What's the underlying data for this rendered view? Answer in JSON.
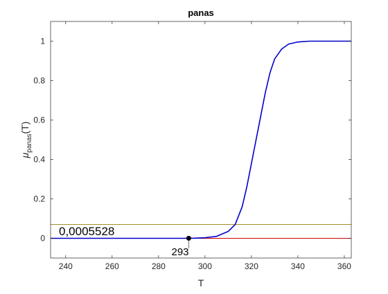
{
  "chart_data": {
    "type": "line",
    "title": "panas",
    "xlabel": "T",
    "ylabel": {
      "symbol": "μ",
      "subscript": "panas",
      "suffix": "(T)"
    },
    "xlim": [
      233.5,
      363
    ],
    "ylim": [
      -0.1,
      1.1
    ],
    "xticks": [
      240,
      260,
      280,
      300,
      320,
      340,
      360
    ],
    "yticks": [
      0,
      0.2,
      0.4,
      0.6,
      0.8,
      1
    ],
    "grid": false,
    "series": [
      {
        "kind": "sigmoid membership curve",
        "color": "#0000cc",
        "points": [
          [
            233.5,
            0
          ],
          [
            290,
            0
          ],
          [
            295,
            0.0008
          ],
          [
            300,
            0.003
          ],
          [
            305,
            0.01
          ],
          [
            310,
            0.035
          ],
          [
            313,
            0.07
          ],
          [
            316,
            0.16
          ],
          [
            318,
            0.26
          ],
          [
            320,
            0.38
          ],
          [
            322,
            0.5
          ],
          [
            324,
            0.62
          ],
          [
            326,
            0.74
          ],
          [
            328,
            0.84
          ],
          [
            330,
            0.91
          ],
          [
            333,
            0.96
          ],
          [
            336,
            0.985
          ],
          [
            340,
            0.996
          ],
          [
            345,
            1
          ],
          [
            363,
            1
          ]
        ]
      },
      {
        "kind": "horizontal line",
        "color": "#a08c2a",
        "y": 0.07
      },
      {
        "kind": "horizontal line",
        "color": "#cc0000",
        "y": 0
      }
    ],
    "marker": {
      "x": 293,
      "y": 0.0005528,
      "color": "#000000"
    },
    "annotations": {
      "value_label": "0,0005528",
      "x_label": "293"
    }
  }
}
